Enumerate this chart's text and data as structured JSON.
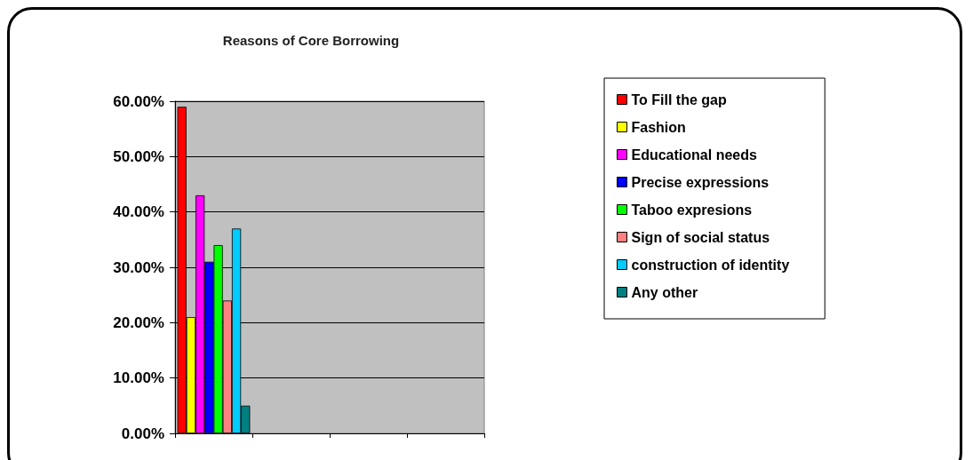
{
  "chart_data": {
    "type": "bar",
    "title": "Reasons of Core Borrowing",
    "categories": [
      null,
      null,
      null,
      null
    ],
    "series": [
      {
        "name": "To Fill the gap",
        "color": "#ff0000",
        "values": [
          59,
          null,
          null,
          null
        ]
      },
      {
        "name": "Fashion",
        "color": "#ffff00",
        "values": [
          21,
          null,
          null,
          null
        ]
      },
      {
        "name": "Educational needs",
        "color": "#ff00ff",
        "values": [
          43,
          null,
          null,
          null
        ]
      },
      {
        "name": "Precise expressions",
        "color": "#0000ff",
        "values": [
          31,
          null,
          null,
          null
        ]
      },
      {
        "name": "Taboo expresions",
        "color": "#00ff00",
        "values": [
          34,
          null,
          null,
          null
        ]
      },
      {
        "name": "Sign of social status",
        "color": "#ff8080",
        "values": [
          24,
          null,
          null,
          null
        ]
      },
      {
        "name": "construction of identity",
        "color": "#00ccff",
        "values": [
          37,
          null,
          null,
          null
        ]
      },
      {
        "name": "Any other",
        "color": "#008080",
        "values": [
          5,
          null,
          null,
          null
        ]
      }
    ],
    "ylim": [
      0,
      60
    ],
    "yticks": [
      {
        "value": 0,
        "label": "0.00%"
      },
      {
        "value": 10,
        "label": "10.00%"
      },
      {
        "value": 20,
        "label": "20.00%"
      },
      {
        "value": 30,
        "label": "30.00%"
      },
      {
        "value": 40,
        "label": "40.00%"
      },
      {
        "value": 50,
        "label": "50.00%"
      },
      {
        "value": 60,
        "label": "60.00%"
      }
    ],
    "grid": "y",
    "legend": "right"
  }
}
